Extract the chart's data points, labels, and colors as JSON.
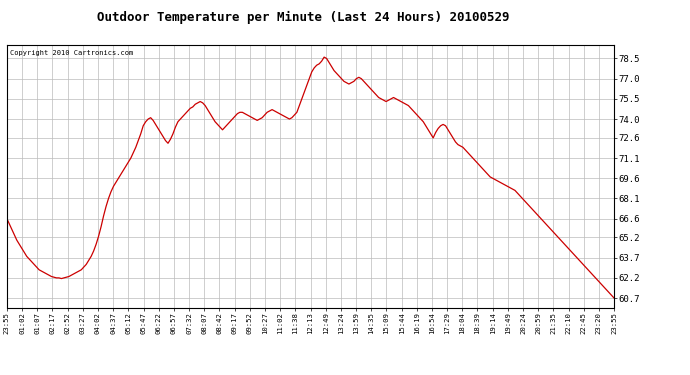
{
  "title": "Outdoor Temperature per Minute (Last 24 Hours) 20100529",
  "copyright_text": "Copyright 2010 Cartronics.com",
  "line_color": "#cc0000",
  "background_color": "#ffffff",
  "grid_color": "#bbbbbb",
  "yticks": [
    60.7,
    62.2,
    63.7,
    65.2,
    66.6,
    68.1,
    69.6,
    71.1,
    72.6,
    74.0,
    75.5,
    77.0,
    78.5
  ],
  "ylim": [
    60.0,
    79.5
  ],
  "xtick_labels": [
    "23:55",
    "01:02",
    "01:07",
    "02:17",
    "02:52",
    "03:27",
    "04:02",
    "04:37",
    "05:12",
    "05:47",
    "06:22",
    "06:57",
    "07:32",
    "08:07",
    "08:42",
    "09:17",
    "09:52",
    "10:27",
    "11:02",
    "11:38",
    "12:13",
    "12:49",
    "13:24",
    "13:59",
    "14:35",
    "15:09",
    "15:44",
    "16:19",
    "16:54",
    "17:29",
    "18:04",
    "18:39",
    "19:14",
    "19:49",
    "20:24",
    "20:59",
    "21:35",
    "22:10",
    "22:45",
    "23:20",
    "23:55"
  ],
  "temperature_data": [
    66.6,
    66.2,
    65.8,
    65.4,
    65.0,
    64.7,
    64.4,
    64.1,
    63.8,
    63.6,
    63.4,
    63.2,
    63.0,
    62.8,
    62.7,
    62.6,
    62.5,
    62.4,
    62.3,
    62.25,
    62.2,
    62.2,
    62.15,
    62.2,
    62.25,
    62.3,
    62.4,
    62.5,
    62.6,
    62.7,
    62.8,
    63.0,
    63.2,
    63.5,
    63.8,
    64.2,
    64.7,
    65.3,
    66.0,
    66.8,
    67.5,
    68.1,
    68.6,
    69.0,
    69.3,
    69.6,
    69.9,
    70.2,
    70.5,
    70.8,
    71.1,
    71.5,
    71.9,
    72.4,
    72.9,
    73.5,
    73.8,
    74.0,
    74.1,
    73.9,
    73.6,
    73.3,
    73.0,
    72.7,
    72.4,
    72.2,
    72.5,
    72.9,
    73.4,
    73.8,
    74.0,
    74.2,
    74.4,
    74.6,
    74.8,
    74.9,
    75.1,
    75.2,
    75.3,
    75.2,
    75.0,
    74.7,
    74.4,
    74.1,
    73.8,
    73.6,
    73.4,
    73.2,
    73.4,
    73.6,
    73.8,
    74.0,
    74.2,
    74.4,
    74.5,
    74.5,
    74.4,
    74.3,
    74.2,
    74.1,
    74.0,
    73.9,
    74.0,
    74.1,
    74.3,
    74.5,
    74.6,
    74.7,
    74.6,
    74.5,
    74.4,
    74.3,
    74.2,
    74.1,
    74.0,
    74.1,
    74.3,
    74.5,
    75.0,
    75.5,
    76.0,
    76.5,
    77.0,
    77.5,
    77.8,
    78.0,
    78.1,
    78.3,
    78.6,
    78.5,
    78.2,
    77.9,
    77.6,
    77.4,
    77.2,
    77.0,
    76.8,
    76.7,
    76.6,
    76.7,
    76.8,
    77.0,
    77.1,
    77.0,
    76.8,
    76.6,
    76.4,
    76.2,
    76.0,
    75.8,
    75.6,
    75.5,
    75.4,
    75.3,
    75.4,
    75.5,
    75.6,
    75.5,
    75.4,
    75.3,
    75.2,
    75.1,
    75.0,
    74.8,
    74.6,
    74.4,
    74.2,
    74.0,
    73.8,
    73.5,
    73.2,
    72.9,
    72.6,
    73.0,
    73.3,
    73.5,
    73.6,
    73.5,
    73.2,
    72.9,
    72.6,
    72.3,
    72.1,
    72.0,
    71.9,
    71.7,
    71.5,
    71.3,
    71.1,
    70.9,
    70.7,
    70.5,
    70.3,
    70.1,
    69.9,
    69.7,
    69.6,
    69.5,
    69.4,
    69.3,
    69.2,
    69.1,
    69.0,
    68.9,
    68.8,
    68.7,
    68.5,
    68.3,
    68.1,
    67.9,
    67.7,
    67.5,
    67.3,
    67.1,
    66.9,
    66.7,
    66.5,
    66.3,
    66.1,
    65.9,
    65.7,
    65.5,
    65.3,
    65.1,
    64.9,
    64.7,
    64.5,
    64.3,
    64.1,
    63.9,
    63.7,
    63.5,
    63.3,
    63.1,
    62.9,
    62.7,
    62.5,
    62.3,
    62.1,
    61.9,
    61.7,
    61.5,
    61.3,
    61.1,
    60.9,
    60.7
  ]
}
